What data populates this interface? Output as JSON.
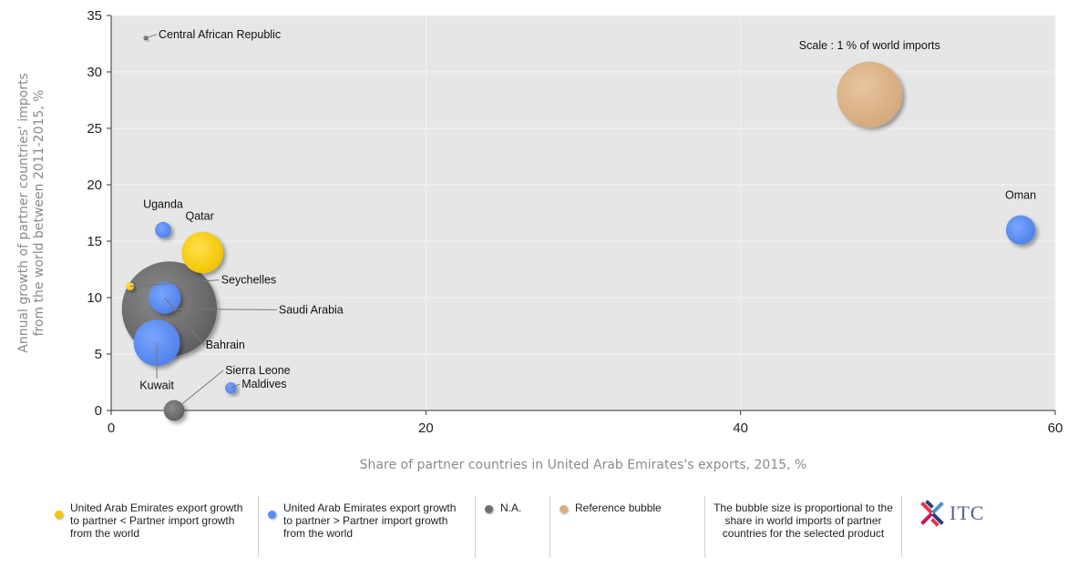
{
  "chart_data": {
    "type": "scatter",
    "xlabel": "Share of partner countries in United Arab Emirates's exports, 2015, %",
    "ylabel": "Annual growth of partner countries' imports from the world between 2011-2015, %",
    "xlim": [
      0,
      60
    ],
    "ylim": [
      0,
      35
    ],
    "xticks": [
      0,
      20,
      40,
      60
    ],
    "yticks": [
      0,
      5,
      10,
      15,
      20,
      25,
      30,
      35
    ],
    "grid": true,
    "points": [
      {
        "name": "Central African Republic",
        "x": 2.2,
        "y": 33,
        "size": 0.002,
        "category": "na"
      },
      {
        "name": "Uganda",
        "x": 3.3,
        "y": 16,
        "size": 0.06,
        "category": "blue"
      },
      {
        "name": "Qatar",
        "x": 5.8,
        "y": 14,
        "size": 0.4,
        "category": "yellow"
      },
      {
        "name": "Seychelles",
        "x": 1.2,
        "y": 11,
        "size": 0.015,
        "category": "yellow"
      },
      {
        "name": "Saudi Arabia",
        "x": 3.7,
        "y": 9,
        "size": 2.1,
        "category": "na"
      },
      {
        "name": "Bahrain",
        "x": 3.4,
        "y": 10,
        "size": 0.24,
        "category": "blue"
      },
      {
        "name": "Kuwait",
        "x": 2.9,
        "y": 6,
        "size": 0.5,
        "category": "blue"
      },
      {
        "name": "Sierra Leone",
        "x": 4.0,
        "y": 0,
        "size": 0.1,
        "category": "na"
      },
      {
        "name": "Maldives",
        "x": 7.6,
        "y": 2,
        "size": 0.03,
        "category": "blue"
      },
      {
        "name": "Oman",
        "x": 57.8,
        "y": 16,
        "size": 0.2,
        "category": "blue"
      }
    ],
    "reference_bubble": {
      "label": "Scale : 1 % of world imports",
      "x": 48.2,
      "y": 28,
      "size": 1.0
    }
  },
  "colors": {
    "yellow": "#f5c800",
    "blue": "#5b8cf0",
    "na": "#6e6e6e",
    "reference": "#d9b086",
    "plot_bg": "#e6e6e6",
    "grid": "#f4f4f4"
  },
  "legend": {
    "item1": "United Arab Emirates export growth to partner < Partner import growth from the world",
    "item2": "United Arab Emirates export growth to partner > Partner import growth from the world",
    "item3": "N.A.",
    "item4": "Reference bubble",
    "note": "The bubble size is proportional to the share in world imports of partner countries for the selected product",
    "logo_text": "ITC",
    "logo_icon": "itc-logo-icon"
  }
}
